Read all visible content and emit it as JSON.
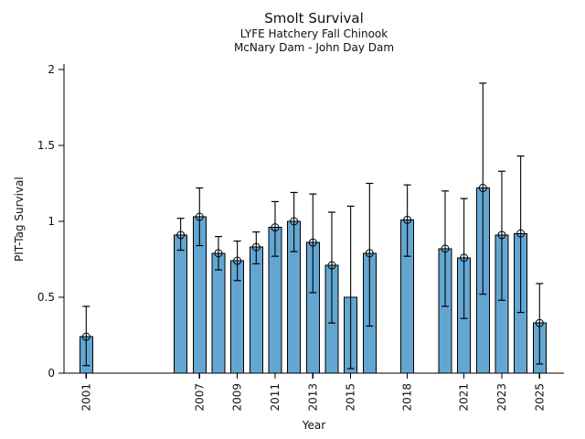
{
  "chart_data": {
    "type": "bar",
    "title": "Smolt Survival",
    "subtitle1": "LYFE Hatchery Fall Chinook",
    "subtitle2": "McNary Dam - John Day Dam",
    "xlabel": "Year",
    "ylabel": "PIT-Tag Survival",
    "ylim": [
      0,
      2
    ],
    "yticks": [
      0,
      0.5,
      1,
      1.5,
      2
    ],
    "ytick_labels": [
      "0",
      "0.5",
      "1",
      "1.5",
      "2"
    ],
    "xtick_years": [
      2001,
      2007,
      2009,
      2011,
      2013,
      2015,
      2018,
      2021,
      2023,
      2025
    ],
    "grid": false,
    "legend": "none",
    "bar_color": "#64a6d2",
    "bar_edge_color": "#000000",
    "error_color": "#000000",
    "series": [
      {
        "year": 2001,
        "value": 0.24,
        "ci_low": 0.05,
        "ci_high": 0.44,
        "marker": true
      },
      {
        "year": 2006,
        "value": 0.91,
        "ci_low": 0.81,
        "ci_high": 1.02,
        "marker": true
      },
      {
        "year": 2007,
        "value": 1.03,
        "ci_low": 0.84,
        "ci_high": 1.22,
        "marker": true
      },
      {
        "year": 2008,
        "value": 0.79,
        "ci_low": 0.68,
        "ci_high": 0.9,
        "marker": true
      },
      {
        "year": 2009,
        "value": 0.74,
        "ci_low": 0.61,
        "ci_high": 0.87,
        "marker": true
      },
      {
        "year": 2010,
        "value": 0.83,
        "ci_low": 0.72,
        "ci_high": 0.93,
        "marker": true
      },
      {
        "year": 2011,
        "value": 0.96,
        "ci_low": 0.77,
        "ci_high": 1.13,
        "marker": true
      },
      {
        "year": 2012,
        "value": 1.0,
        "ci_low": 0.8,
        "ci_high": 1.19,
        "marker": true
      },
      {
        "year": 2013,
        "value": 0.86,
        "ci_low": 0.53,
        "ci_high": 1.18,
        "marker": true
      },
      {
        "year": 2014,
        "value": 0.71,
        "ci_low": 0.33,
        "ci_high": 1.06,
        "marker": true
      },
      {
        "year": 2015,
        "value": 0.5,
        "ci_low": 0.03,
        "ci_high": 1.1,
        "marker": false
      },
      {
        "year": 2016,
        "value": 0.79,
        "ci_low": 0.31,
        "ci_high": 1.25,
        "marker": true
      },
      {
        "year": 2018,
        "value": 1.01,
        "ci_low": 0.77,
        "ci_high": 1.24,
        "marker": true
      },
      {
        "year": 2020,
        "value": 0.82,
        "ci_low": 0.44,
        "ci_high": 1.2,
        "marker": true
      },
      {
        "year": 2021,
        "value": 0.76,
        "ci_low": 0.36,
        "ci_high": 1.15,
        "marker": true
      },
      {
        "year": 2022,
        "value": 1.22,
        "ci_low": 0.52,
        "ci_high": 1.91,
        "marker": true
      },
      {
        "year": 2023,
        "value": 0.91,
        "ci_low": 0.48,
        "ci_high": 1.33,
        "marker": true
      },
      {
        "year": 2024,
        "value": 0.92,
        "ci_low": 0.4,
        "ci_high": 1.43,
        "marker": true
      },
      {
        "year": 2025,
        "value": 0.33,
        "ci_low": 0.06,
        "ci_high": 0.59,
        "marker": true
      }
    ]
  }
}
